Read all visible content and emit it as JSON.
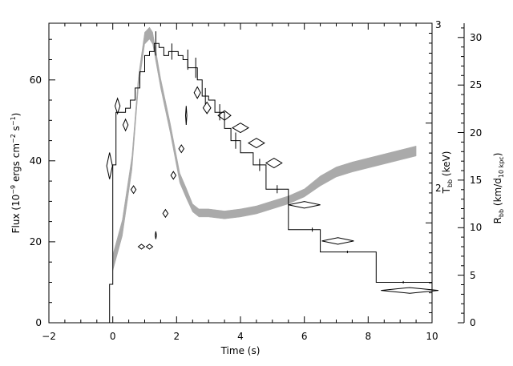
{
  "chart_data": {
    "type": "line",
    "axes": {
      "x": {
        "label": "Time (s)",
        "range": [
          -2,
          10
        ],
        "ticks": [
          "−2",
          "0",
          "2",
          "4",
          "6",
          "8",
          "10"
        ],
        "tick_values": [
          -2,
          0,
          2,
          4,
          6,
          8,
          10
        ]
      },
      "y_left": {
        "label_prefix": "Flux (10",
        "label_exp1": "−9",
        "label_mid": " ergs cm",
        "label_exp2": "−2",
        "label_mid2": " s",
        "label_exp3": "−1",
        "label_suffix": ")",
        "range": [
          0,
          74
        ],
        "ticks": [
          "0",
          "20",
          "40",
          "60"
        ],
        "tick_values": [
          0,
          20,
          40,
          60
        ]
      },
      "y_right_t": {
        "label_main": "T",
        "label_sub": "bb",
        "label_suffix": " (keV)",
        "range": [
          0,
          3
        ],
        "ticks": [
          "2",
          "3"
        ],
        "tick_values": [
          2,
          3
        ]
      },
      "y_right_r": {
        "label_main": "R",
        "label_sub": "bb",
        "label_mid": " (km/d",
        "label_sub2": "10 kpc",
        "label_suffix": ")",
        "range": [
          0,
          31.5
        ],
        "ticks": [
          "0",
          "5",
          "10",
          "15",
          "20",
          "25",
          "30"
        ],
        "tick_values": [
          0,
          5,
          10,
          15,
          20,
          25,
          30
        ]
      }
    },
    "series": [
      {
        "style": "histogram",
        "steps": [
          [
            -0.1,
            0.0,
            9.5
          ],
          [
            0.0,
            0.1,
            39
          ],
          [
            0.1,
            0.25,
            52
          ],
          [
            0.25,
            0.4,
            52
          ],
          [
            0.4,
            0.55,
            53
          ],
          [
            0.55,
            0.7,
            55
          ],
          [
            0.7,
            0.85,
            58
          ],
          [
            0.85,
            1.0,
            62
          ],
          [
            1.0,
            1.15,
            66
          ],
          [
            1.15,
            1.3,
            67
          ],
          [
            1.3,
            1.45,
            69
          ],
          [
            1.45,
            1.6,
            68
          ],
          [
            1.6,
            1.75,
            66
          ],
          [
            1.75,
            1.9,
            67
          ],
          [
            1.9,
            2.05,
            67
          ],
          [
            2.05,
            2.2,
            66
          ],
          [
            2.2,
            2.35,
            65
          ],
          [
            2.35,
            2.5,
            63
          ],
          [
            2.5,
            2.65,
            63
          ],
          [
            2.65,
            2.8,
            60
          ],
          [
            2.8,
            3.0,
            56
          ],
          [
            3.0,
            3.2,
            55
          ],
          [
            3.2,
            3.5,
            52
          ],
          [
            3.5,
            3.7,
            48
          ],
          [
            3.7,
            4.0,
            45
          ],
          [
            4.0,
            4.4,
            42
          ],
          [
            4.4,
            4.8,
            39
          ],
          [
            4.8,
            5.5,
            33
          ],
          [
            5.5,
            6.0,
            23
          ],
          [
            6.0,
            6.5,
            23
          ],
          [
            6.5,
            8.25,
            17.5
          ],
          [
            8.25,
            10.0,
            10
          ]
        ],
        "errors": [
          [
            1.35,
            69,
            3
          ],
          [
            1.85,
            67,
            2
          ],
          [
            2.35,
            65,
            2.5
          ],
          [
            2.6,
            63,
            2.5
          ],
          [
            2.9,
            56,
            2
          ],
          [
            3.35,
            52,
            2
          ],
          [
            3.85,
            45,
            2
          ],
          [
            4.6,
            39,
            1.5
          ],
          [
            5.15,
            33,
            1
          ],
          [
            6.25,
            23,
            0.5
          ],
          [
            7.35,
            17.5,
            0.3
          ],
          [
            9.1,
            10,
            0.3
          ]
        ]
      },
      {
        "style": "band",
        "axis": "temperature",
        "points": [
          [
            0.0,
            0.6
          ],
          [
            0.3,
            0.95
          ],
          [
            0.6,
            1.6
          ],
          [
            0.8,
            2.4
          ],
          [
            1.0,
            2.85
          ],
          [
            1.15,
            2.9
          ],
          [
            1.25,
            2.85
          ],
          [
            1.5,
            2.4
          ],
          [
            1.8,
            1.95
          ],
          [
            2.1,
            1.45
          ],
          [
            2.3,
            1.3
          ],
          [
            2.5,
            1.15
          ],
          [
            2.7,
            1.1
          ],
          [
            3.0,
            1.1
          ],
          [
            3.5,
            1.08
          ],
          [
            4.0,
            1.1
          ],
          [
            4.5,
            1.13
          ],
          [
            5.0,
            1.18
          ],
          [
            5.5,
            1.23
          ],
          [
            6.0,
            1.3
          ],
          [
            6.5,
            1.42
          ],
          [
            7.0,
            1.51
          ],
          [
            7.5,
            1.56
          ],
          [
            8.0,
            1.6
          ],
          [
            8.5,
            1.64
          ],
          [
            9.0,
            1.68
          ],
          [
            9.5,
            1.72
          ]
        ],
        "half_widths": [
          0.08,
          0.08,
          0.07,
          0.06,
          0.06,
          0.06,
          0.06,
          0.05,
          0.05,
          0.05,
          0.05,
          0.04,
          0.04,
          0.04,
          0.04,
          0.04,
          0.04,
          0.04,
          0.04,
          0.04,
          0.05,
          0.05,
          0.05,
          0.05,
          0.05,
          0.05,
          0.05
        ]
      },
      {
        "style": "diamonds",
        "axis": "radius",
        "points": [
          [
            -0.1,
            16.5,
            0.09,
            1.4
          ],
          [
            0.15,
            22.8,
            0.08,
            0.8
          ],
          [
            0.4,
            20.8,
            0.08,
            0.6
          ],
          [
            0.65,
            14.0,
            0.08,
            0.4
          ],
          [
            0.9,
            8.0,
            0.1,
            0.25
          ],
          [
            1.15,
            8.0,
            0.1,
            0.25
          ],
          [
            1.35,
            9.2,
            0.02,
            0.4
          ],
          [
            1.65,
            11.5,
            0.08,
            0.4
          ],
          [
            1.9,
            15.5,
            0.08,
            0.4
          ],
          [
            2.15,
            18.3,
            0.08,
            0.4
          ],
          [
            2.3,
            21.8,
            0.02,
            1.0
          ],
          [
            2.65,
            24.2,
            0.1,
            0.6
          ],
          [
            2.95,
            22.6,
            0.12,
            0.6
          ],
          [
            3.5,
            21.8,
            0.2,
            0.5
          ],
          [
            4.0,
            20.5,
            0.25,
            0.5
          ],
          [
            4.5,
            18.9,
            0.25,
            0.5
          ],
          [
            5.05,
            16.8,
            0.25,
            0.5
          ],
          [
            6.0,
            12.4,
            0.5,
            0.35
          ],
          [
            7.05,
            8.6,
            0.5,
            0.35
          ],
          [
            9.3,
            3.4,
            0.9,
            0.3
          ]
        ]
      }
    ],
    "colors": {
      "histogram": "#000000",
      "band": "#aaaaaa",
      "diamond": "#000000"
    }
  }
}
